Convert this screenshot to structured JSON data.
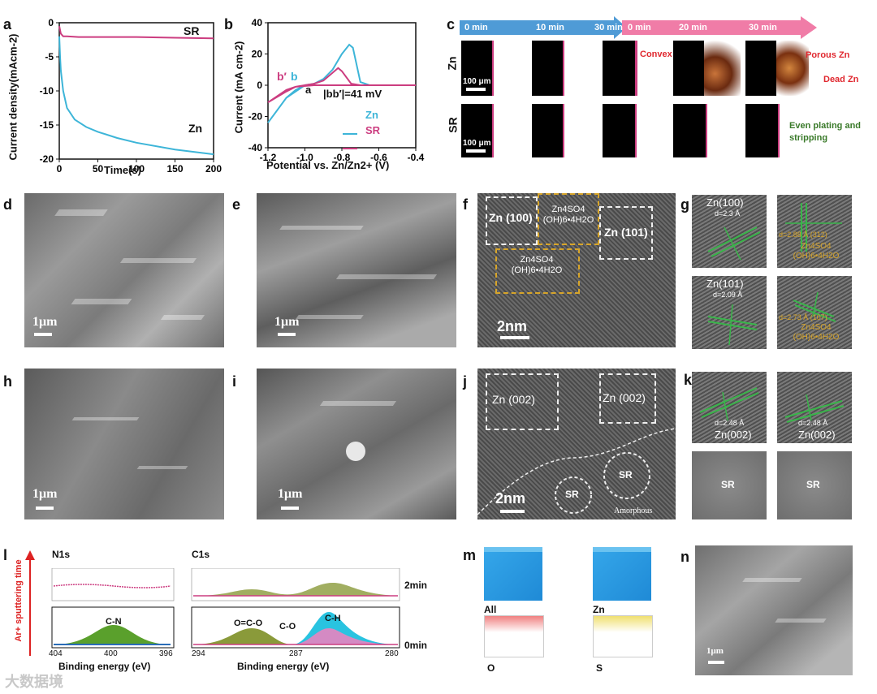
{
  "panels": {
    "a": "a",
    "b": "b",
    "c": "c",
    "d": "d",
    "e": "e",
    "f": "f",
    "g": "g",
    "h": "h",
    "i": "i",
    "j": "j",
    "k": "k",
    "l": "l",
    "m": "m",
    "n": "n"
  },
  "colors": {
    "zn": "#3db5d8",
    "sr": "#cc3d80",
    "arrow_blue": "#4f9bd6",
    "arrow_pink": "#f07ca7",
    "green": "#39b54a",
    "yellow": "#d7a52a"
  },
  "chart_a": {
    "ylabel": "Current density(mAcm-2)",
    "xlabel": "Time(s)",
    "xticks": [
      "0",
      "50",
      "100",
      "150",
      "200"
    ],
    "yticks": [
      "0",
      "-5",
      "-10",
      "-15",
      "-20"
    ],
    "label_sr": "SR",
    "label_zn": "Zn"
  },
  "chart_b": {
    "ylabel": "Current (mA cm-2)",
    "xlabel": "Potential vs. Zn/Zn2+ (V)",
    "xticks": [
      "-1.2",
      "-1.0",
      "-0.8",
      "-0.6",
      "-0.4"
    ],
    "yticks": [
      "40",
      "20",
      "0",
      "-20",
      "-40"
    ],
    "label_bp": "b′",
    "label_b": "b",
    "label_a": "a",
    "annot": "|bb′|=41 mV",
    "legend_zn": "Zn",
    "legend_sr": "SR"
  },
  "chart_data": [
    {
      "type": "line",
      "title": "",
      "xlabel": "Time(s)",
      "ylabel": "Current density(mAcm-2)",
      "xlim": [
        0,
        200
      ],
      "ylim": [
        -20,
        0
      ],
      "series": [
        {
          "name": "SR",
          "x": [
            0,
            2,
            5,
            10,
            25,
            50,
            100,
            150,
            200
          ],
          "y": [
            -0.5,
            -1.6,
            -2.0,
            -2.0,
            -2.1,
            -2.1,
            -2.1,
            -2.2,
            -2.3
          ]
        },
        {
          "name": "Zn",
          "x": [
            0,
            1,
            2,
            5,
            10,
            20,
            35,
            50,
            75,
            100,
            150,
            200
          ],
          "y": [
            -2,
            -5,
            -7,
            -10,
            -12.5,
            -14.2,
            -15.3,
            -16.0,
            -16.9,
            -17.6,
            -18.6,
            -19.3
          ]
        }
      ]
    },
    {
      "type": "line",
      "title": "",
      "xlabel": "Potential vs. Zn/Zn2+ (V)",
      "ylabel": "Current (mA cm-2)",
      "xlim": [
        -1.2,
        -0.4
      ],
      "ylim": [
        -40,
        40
      ],
      "series": [
        {
          "name": "Zn",
          "x": [
            -1.2,
            -1.15,
            -1.1,
            -1.05,
            -1.0,
            -0.95,
            -0.9,
            -0.85,
            -0.8,
            -0.76,
            -0.74,
            -0.7,
            -0.65,
            -0.6,
            -0.5,
            -0.4,
            -0.6,
            -0.8,
            -0.95,
            -1.0,
            -1.1,
            -1.2
          ],
          "y": [
            -24,
            -16,
            -8,
            -3,
            0,
            1,
            4,
            10,
            20,
            26,
            24,
            2,
            0,
            0,
            0,
            0,
            0,
            0,
            0,
            0,
            -8,
            -24
          ]
        },
        {
          "name": "SR",
          "x": [
            -1.2,
            -1.15,
            -1.1,
            -1.05,
            -1.0,
            -0.95,
            -0.9,
            -0.85,
            -0.82,
            -0.8,
            -0.75,
            -0.7,
            -0.6,
            -0.4,
            -0.6,
            -0.8,
            -0.95,
            -1.05,
            -1.1,
            -1.2
          ],
          "y": [
            -11,
            -7,
            -3,
            -1,
            0,
            1,
            3,
            8,
            11,
            9,
            1,
            0,
            0,
            0,
            0,
            0,
            0,
            -1,
            -4,
            -11
          ]
        }
      ]
    }
  ],
  "panel_c": {
    "times_blue": [
      "0 min",
      "10 min",
      "30 min"
    ],
    "times_pink": [
      "0 min",
      "20 min",
      "30 min"
    ],
    "row_zn": "Zn",
    "row_sr": "SR",
    "scale": "100 μm",
    "convex": "Convex",
    "porous": "Porous Zn",
    "dead": "Dead Zn",
    "even": "Even plating and stripping"
  },
  "scale_1um": "1μm",
  "scale_2nm": "2nm",
  "panel_f": {
    "zn100": "Zn (100)",
    "zn101": "Zn (101)",
    "zns1": "Zn4SO4 (OH)6•4H2O",
    "zns2": "Zn4SO4 (OH)6•4H2O"
  },
  "panel_g": {
    "t1": "Zn(100)",
    "d1": "d=2.3 Å",
    "t2": "Zn(101)",
    "d2": "d=2.09 Å",
    "y1": "d=2.88 Å (312)",
    "y1b": "Zn4SO4 (OH)6•4H2O",
    "y2": "d=2.73 Å (107)",
    "y2b": "Zn4SO4 (OH)6•4H2O"
  },
  "panel_j": {
    "zn002a": "Zn (002)",
    "zn002b": "Zn (002)",
    "sr1": "SR",
    "sr2": "SR",
    "amorphous": "Amorphous"
  },
  "panel_k": {
    "d1": "d=2.48 Å",
    "t1": "Zn(002)",
    "d2": "d=2.48 Å",
    "t2": "Zn(002)",
    "sr1": "SR",
    "sr2": "SR"
  },
  "panel_l": {
    "side": "Ar+ sputtering time",
    "n1s": "N1s",
    "c1s": "C1s",
    "cn": "C-N",
    "oco": "O=C-O",
    "co": "C-O",
    "ch": "C-H",
    "t2": "2min",
    "t0": "0min",
    "xlabel": "Binding energy (eV)",
    "n_ticks": [
      "404",
      "400",
      "396"
    ],
    "c_ticks": [
      "294",
      "287",
      "280"
    ]
  },
  "panel_m": {
    "all": "All",
    "zn": "Zn",
    "o": "O",
    "s": "S"
  },
  "watermark": "大数据境"
}
